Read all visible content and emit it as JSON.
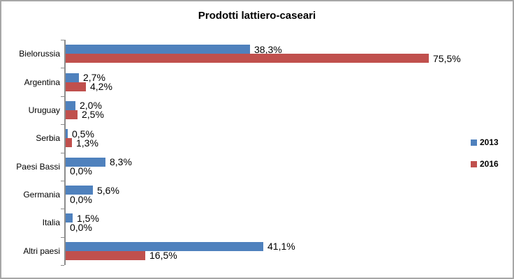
{
  "window": {
    "background": "#ffffff",
    "border_color": "#a6a6a6"
  },
  "axis": {
    "color": "#8c8c8c"
  },
  "chart_data": {
    "type": "bar",
    "orientation": "horizontal",
    "title": "Prodotti lattiero-caseari",
    "categories": [
      "Bielorussia",
      "Argentina",
      "Uruguay",
      "Serbia",
      "Paesi Bassi",
      "Germania",
      "Italia",
      "Altri paesi"
    ],
    "series": [
      {
        "name": "2013",
        "color": "#4f81bd",
        "values": [
          38.3,
          2.7,
          2.0,
          0.5,
          8.3,
          5.6,
          1.5,
          41.1
        ],
        "labels": [
          "38,3%",
          "2,7%",
          "2,0%",
          "0,5%",
          "8,3%",
          "5,6%",
          "1,5%",
          "41,1%"
        ]
      },
      {
        "name": "2016",
        "color": "#c0504d",
        "values": [
          75.5,
          4.2,
          2.5,
          1.3,
          0.0,
          0.0,
          0.0,
          16.5
        ],
        "labels": [
          "75,5%",
          "4,2%",
          "2,5%",
          "1,3%",
          "0,0%",
          "0,0%",
          "0,0%",
          "16,5%"
        ]
      }
    ],
    "xlim": [
      0,
      80
    ],
    "grid": false,
    "legend_position": "right",
    "value_labels_shown": true
  }
}
